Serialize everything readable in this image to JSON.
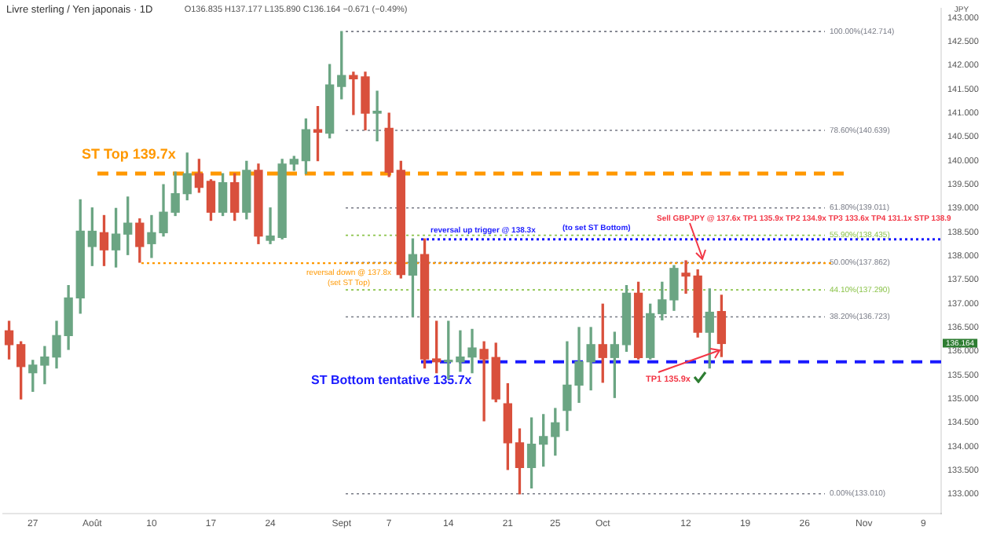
{
  "chart_data": {
    "type": "candlestick",
    "title": "Livre sterling / Yen japonais · 1D",
    "subtitle": "O136.835 H137.177 L135.890 C136.164 −0.671 (−0.49%)",
    "categories": [
      null,
      null,
      "27",
      null,
      null,
      null,
      null,
      "Août",
      null,
      null,
      null,
      null,
      "10",
      null,
      null,
      null,
      null,
      "17",
      null,
      null,
      null,
      null,
      "24",
      null,
      null,
      null,
      null,
      null,
      "Sept",
      null,
      null,
      null,
      "7",
      null,
      null,
      null,
      null,
      "14",
      null,
      null,
      null,
      null,
      "21",
      null,
      null,
      null,
      "25",
      null,
      null,
      null,
      "Oct",
      null,
      null,
      null,
      null,
      null,
      null,
      "12",
      null,
      null,
      null,
      null,
      "19",
      null,
      null,
      null,
      null,
      "26",
      null,
      null,
      null,
      null,
      "Nov",
      null,
      null,
      null,
      null,
      "9",
      null
    ],
    "ohlc": [
      [
        136.43,
        136.63,
        135.84,
        136.14
      ],
      [
        136.14,
        136.2,
        135.0,
        135.68
      ],
      [
        135.55,
        135.81,
        135.16,
        135.71
      ],
      [
        135.71,
        136.1,
        135.32,
        135.88
      ],
      [
        135.88,
        136.63,
        135.65,
        136.33
      ],
      [
        136.33,
        137.38,
        136.04,
        137.12
      ],
      [
        137.12,
        139.18,
        136.8,
        138.52
      ],
      [
        138.2,
        139.01,
        137.8,
        138.52
      ],
      [
        138.49,
        138.85,
        137.8,
        138.13
      ],
      [
        138.13,
        139.0,
        137.77,
        138.46
      ],
      [
        138.46,
        139.24,
        138.03,
        138.69
      ],
      [
        138.69,
        138.78,
        137.87,
        138.2
      ],
      [
        138.26,
        138.85,
        137.97,
        138.49
      ],
      [
        138.49,
        139.5,
        138.42,
        138.92
      ],
      [
        138.92,
        139.76,
        138.85,
        139.31
      ],
      [
        139.31,
        140.16,
        139.18,
        139.73
      ],
      [
        139.73,
        140.03,
        139.34,
        139.44
      ],
      [
        139.57,
        139.6,
        138.75,
        138.92
      ],
      [
        138.92,
        139.73,
        138.85,
        139.54
      ],
      [
        139.54,
        139.73,
        138.75,
        138.92
      ],
      [
        138.92,
        139.99,
        138.78,
        139.8
      ],
      [
        139.8,
        139.93,
        138.26,
        138.42
      ],
      [
        138.33,
        139.01,
        138.26,
        138.42
      ],
      [
        138.39,
        140.03,
        138.36,
        139.93
      ],
      [
        139.93,
        140.09,
        139.8,
        140.03
      ],
      [
        140.0,
        140.88,
        139.73,
        140.65
      ],
      [
        140.65,
        141.14,
        140.0,
        140.6
      ],
      [
        140.58,
        142.02,
        140.48,
        141.59
      ],
      [
        141.56,
        142.714,
        141.3,
        141.79
      ],
      [
        141.79,
        141.86,
        140.97,
        141.72
      ],
      [
        141.76,
        141.86,
        140.65,
        141.0
      ],
      [
        141.0,
        141.46,
        140.42,
        141.04
      ],
      [
        140.68,
        141.0,
        139.67,
        139.76
      ],
      [
        139.8,
        139.99,
        137.54,
        137.61
      ],
      [
        137.6,
        138.36,
        136.73,
        138.03
      ],
      [
        138.03,
        138.36,
        135.65,
        135.84
      ],
      [
        135.84,
        136.63,
        135.55,
        135.78
      ],
      [
        135.78,
        136.63,
        135.42,
        135.8
      ],
      [
        135.78,
        136.43,
        135.58,
        135.88
      ],
      [
        135.88,
        136.46,
        135.55,
        136.07
      ],
      [
        136.04,
        136.2,
        134.54,
        135.84
      ],
      [
        135.87,
        136.17,
        134.94,
        135.0
      ],
      [
        134.9,
        135.32,
        133.52,
        134.08
      ],
      [
        134.08,
        134.37,
        133.01,
        133.56
      ],
      [
        133.56,
        134.6,
        133.13,
        134.05
      ],
      [
        134.05,
        134.67,
        133.59,
        134.21
      ],
      [
        134.21,
        134.8,
        133.82,
        134.5
      ],
      [
        134.76,
        136.2,
        134.34,
        135.29
      ],
      [
        135.29,
        136.5,
        134.93,
        135.78
      ],
      [
        135.78,
        136.5,
        135.19,
        136.14
      ],
      [
        136.14,
        136.99,
        135.35,
        135.87
      ],
      [
        135.87,
        136.4,
        135.03,
        136.14
      ],
      [
        136.14,
        137.38,
        136.0,
        137.22
      ],
      [
        137.22,
        137.45,
        135.84,
        135.87
      ],
      [
        135.87,
        136.99,
        135.84,
        136.79
      ],
      [
        136.79,
        137.45,
        136.66,
        137.08
      ],
      [
        137.08,
        137.8,
        136.86,
        137.74
      ],
      [
        137.64,
        137.9,
        137.22,
        137.58
      ],
      [
        137.58,
        137.71,
        136.3,
        136.4
      ],
      [
        136.4,
        137.31,
        135.65,
        136.82
      ],
      [
        136.835,
        137.177,
        135.89,
        136.164
      ],
      null,
      null,
      null,
      null,
      null,
      null,
      null,
      null,
      null,
      null,
      null,
      null,
      null,
      null,
      null,
      null,
      null,
      null
    ],
    "colors": [
      "#d9503c",
      "#d9503c",
      "#6ba583",
      "#6ba583",
      "#6ba583",
      "#6ba583",
      "#6ba583",
      "#6ba583",
      "#d9503c",
      "#6ba583",
      "#6ba583",
      "#d9503c",
      "#6ba583",
      "#6ba583",
      "#6ba583",
      "#6ba583",
      "#d9503c",
      "#d9503c",
      "#6ba583",
      "#d9503c",
      "#6ba583",
      "#d9503c",
      "#6ba583",
      "#6ba583",
      "#6ba583",
      "#6ba583",
      "#d9503c",
      "#6ba583",
      "#6ba583",
      "#d9503c",
      "#d9503c",
      "#6ba583",
      "#d9503c",
      "#d9503c",
      "#6ba583",
      "#d9503c",
      "#d9503c",
      "#6ba583",
      "#6ba583",
      "#6ba583",
      "#d9503c",
      "#d9503c",
      "#d9503c",
      "#d9503c",
      "#6ba583",
      "#6ba583",
      "#6ba583",
      "#6ba583",
      "#6ba583",
      "#6ba583",
      "#d9503c",
      "#6ba583",
      "#6ba583",
      "#d9503c",
      "#6ba583",
      "#6ba583",
      "#6ba583",
      "#d9503c",
      "#d9503c",
      "#6ba583",
      "#d9503c",
      null,
      null,
      null,
      null,
      null,
      null,
      null,
      null,
      null,
      null,
      null,
      null,
      null,
      null,
      null,
      null,
      null,
      null
    ],
    "ylim": [
      132.6,
      143.2
    ],
    "yticks": [
      {
        "value": 133,
        "label": "133.000"
      },
      {
        "value": 133.5,
        "label": "133.500"
      },
      {
        "value": 134,
        "label": "134.000"
      },
      {
        "value": 134.5,
        "label": "134.500"
      },
      {
        "value": 135,
        "label": "135.000"
      },
      {
        "value": 135.5,
        "label": "135.500"
      },
      {
        "value": 136,
        "label": "136.000"
      },
      {
        "value": 136.5,
        "label": "136.500"
      },
      {
        "value": 137,
        "label": "137.000"
      },
      {
        "value": 137.5,
        "label": "137.500"
      },
      {
        "value": 138,
        "label": "138.000"
      },
      {
        "value": 138.5,
        "label": "138.500"
      },
      {
        "value": 139,
        "label": "139.000"
      },
      {
        "value": 139.5,
        "label": "139.500"
      },
      {
        "value": 140,
        "label": "140.000"
      },
      {
        "value": 140.5,
        "label": "140.500"
      },
      {
        "value": 141,
        "label": "141.000"
      },
      {
        "value": 141.5,
        "label": "141.500"
      },
      {
        "value": 142,
        "label": "142.000"
      },
      {
        "value": 142.5,
        "label": "142.500"
      },
      {
        "value": 143,
        "label": "143.000"
      }
    ],
    "ref_lines": [
      {
        "axis": "y",
        "value": 142.714,
        "label": "100.00%(142.714)",
        "color": "#787b86",
        "line_style": "dotted"
      },
      {
        "axis": "y",
        "value": 140.639,
        "label": "78.60%(140.639)",
        "color": "#787b86",
        "line_style": "dotted"
      },
      {
        "axis": "y",
        "value": 139.011,
        "label": "61.80%(139.011)",
        "color": "#787b86",
        "line_style": "dotted"
      },
      {
        "axis": "y",
        "value": 138.435,
        "label": "55.90%(138.435)",
        "color": "#8bc34a",
        "line_style": "dotted"
      },
      {
        "axis": "y",
        "value": 137.862,
        "label": "50.00%(137.862)",
        "color": "#787b86",
        "line_style": "dotted"
      },
      {
        "axis": "y",
        "value": 137.29,
        "label": "44.10%(137.290)",
        "color": "#8bc34a",
        "line_style": "dotted"
      },
      {
        "axis": "y",
        "value": 136.723,
        "label": "38.20%(136.723)",
        "color": "#787b86",
        "line_style": "dotted"
      },
      {
        "axis": "y",
        "value": 133.01,
        "label": "0.00%(133.010)",
        "color": "#787b86",
        "line_style": "dotted"
      },
      {
        "axis": "y",
        "value": 139.73,
        "label": "ST Top 139.7x",
        "color": "#ff9800",
        "line_style": "dashed"
      },
      {
        "axis": "y",
        "value": 137.85,
        "label": "reversal down @ 137.8x\n(set ST Top)",
        "color": "#ff9800",
        "line_style": "dotted"
      },
      {
        "axis": "y",
        "value": 135.78,
        "label": "ST Bottom tentative 135.7x",
        "color": "#1a1aff",
        "line_style": "dashed"
      },
      {
        "axis": "y",
        "value": 138.35,
        "label": "reversal up trigger @ 138.3x",
        "color": "#1a1aff",
        "line_style": "dotted"
      }
    ],
    "annotations": [
      "Sell GBPJPY @ 137.6x TP1 135.9x TP2 134.9x TP3 133.6x TP4 131.1x STP 138.9",
      {
        "text": "TP1 135.9x",
        "y": 135.9
      },
      "(to set ST Bottom)",
      "136.164",
      "JPY"
    ]
  }
}
